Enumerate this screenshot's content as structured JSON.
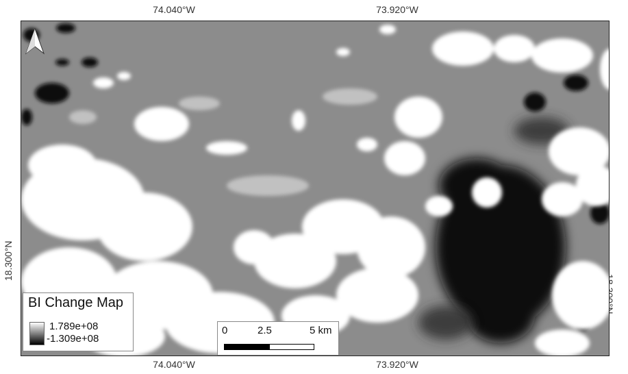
{
  "coordinates": {
    "top_left": "74.040°W",
    "top_right": "73.920°W",
    "bottom_left": "74.040°W",
    "bottom_right": "73.920°W",
    "left": "18.300°N",
    "right": "18.300°N"
  },
  "legend": {
    "title": "BI Change Map",
    "max_label": "1.789e+08",
    "min_label": "-1.309e+08"
  },
  "scalebar": {
    "ticks": [
      "0",
      "2.5",
      "5 km"
    ]
  },
  "north_arrow": {
    "icon": "north-arrow-icon"
  },
  "colors": {
    "background_gray": "#8c8c8c",
    "cloud": "#ffffff",
    "loss": "#000000"
  }
}
